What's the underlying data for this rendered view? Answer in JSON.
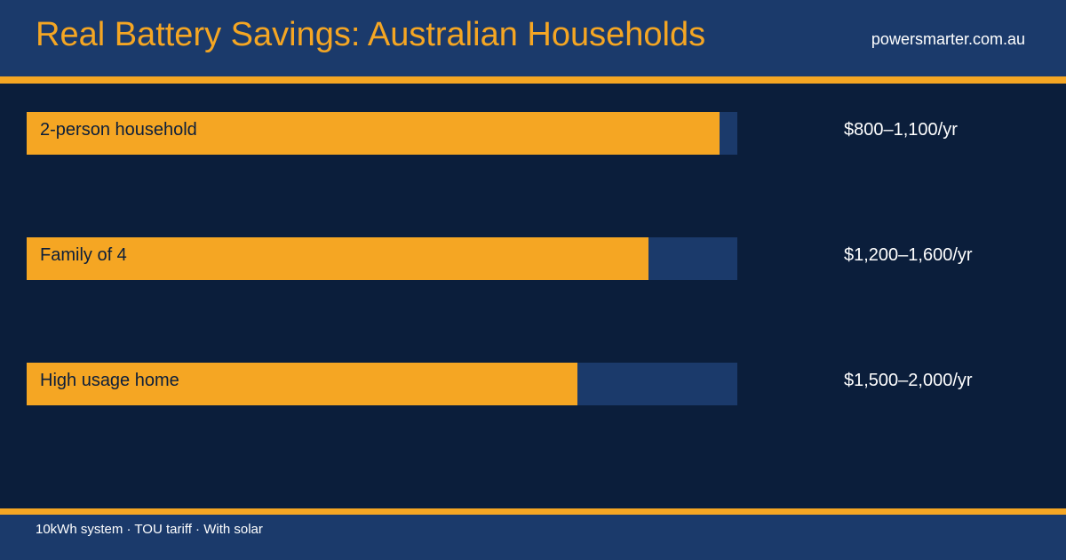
{
  "header": {
    "title": "Real Battery Savings: Australian Households",
    "site": "powersmarter.com.au"
  },
  "footer": {
    "note": "10kWh system · TOU tariff · With solar"
  },
  "colors": {
    "background": "#0b1e3b",
    "panel": "#1b3a6b",
    "accent": "#f5a623",
    "text": "#ffffff"
  },
  "chart_data": {
    "type": "bar",
    "orientation": "horizontal",
    "categories": [
      "2-person household",
      "Family of 4",
      "High usage home"
    ],
    "values": [
      97.5,
      87.5,
      77.5
    ],
    "xlim": [
      0,
      100
    ],
    "value_labels": [
      "$800–1,100/yr",
      "$1,200–1,600/yr",
      "$1,500–2,000/yr"
    ],
    "grid": false,
    "legend": "none"
  }
}
